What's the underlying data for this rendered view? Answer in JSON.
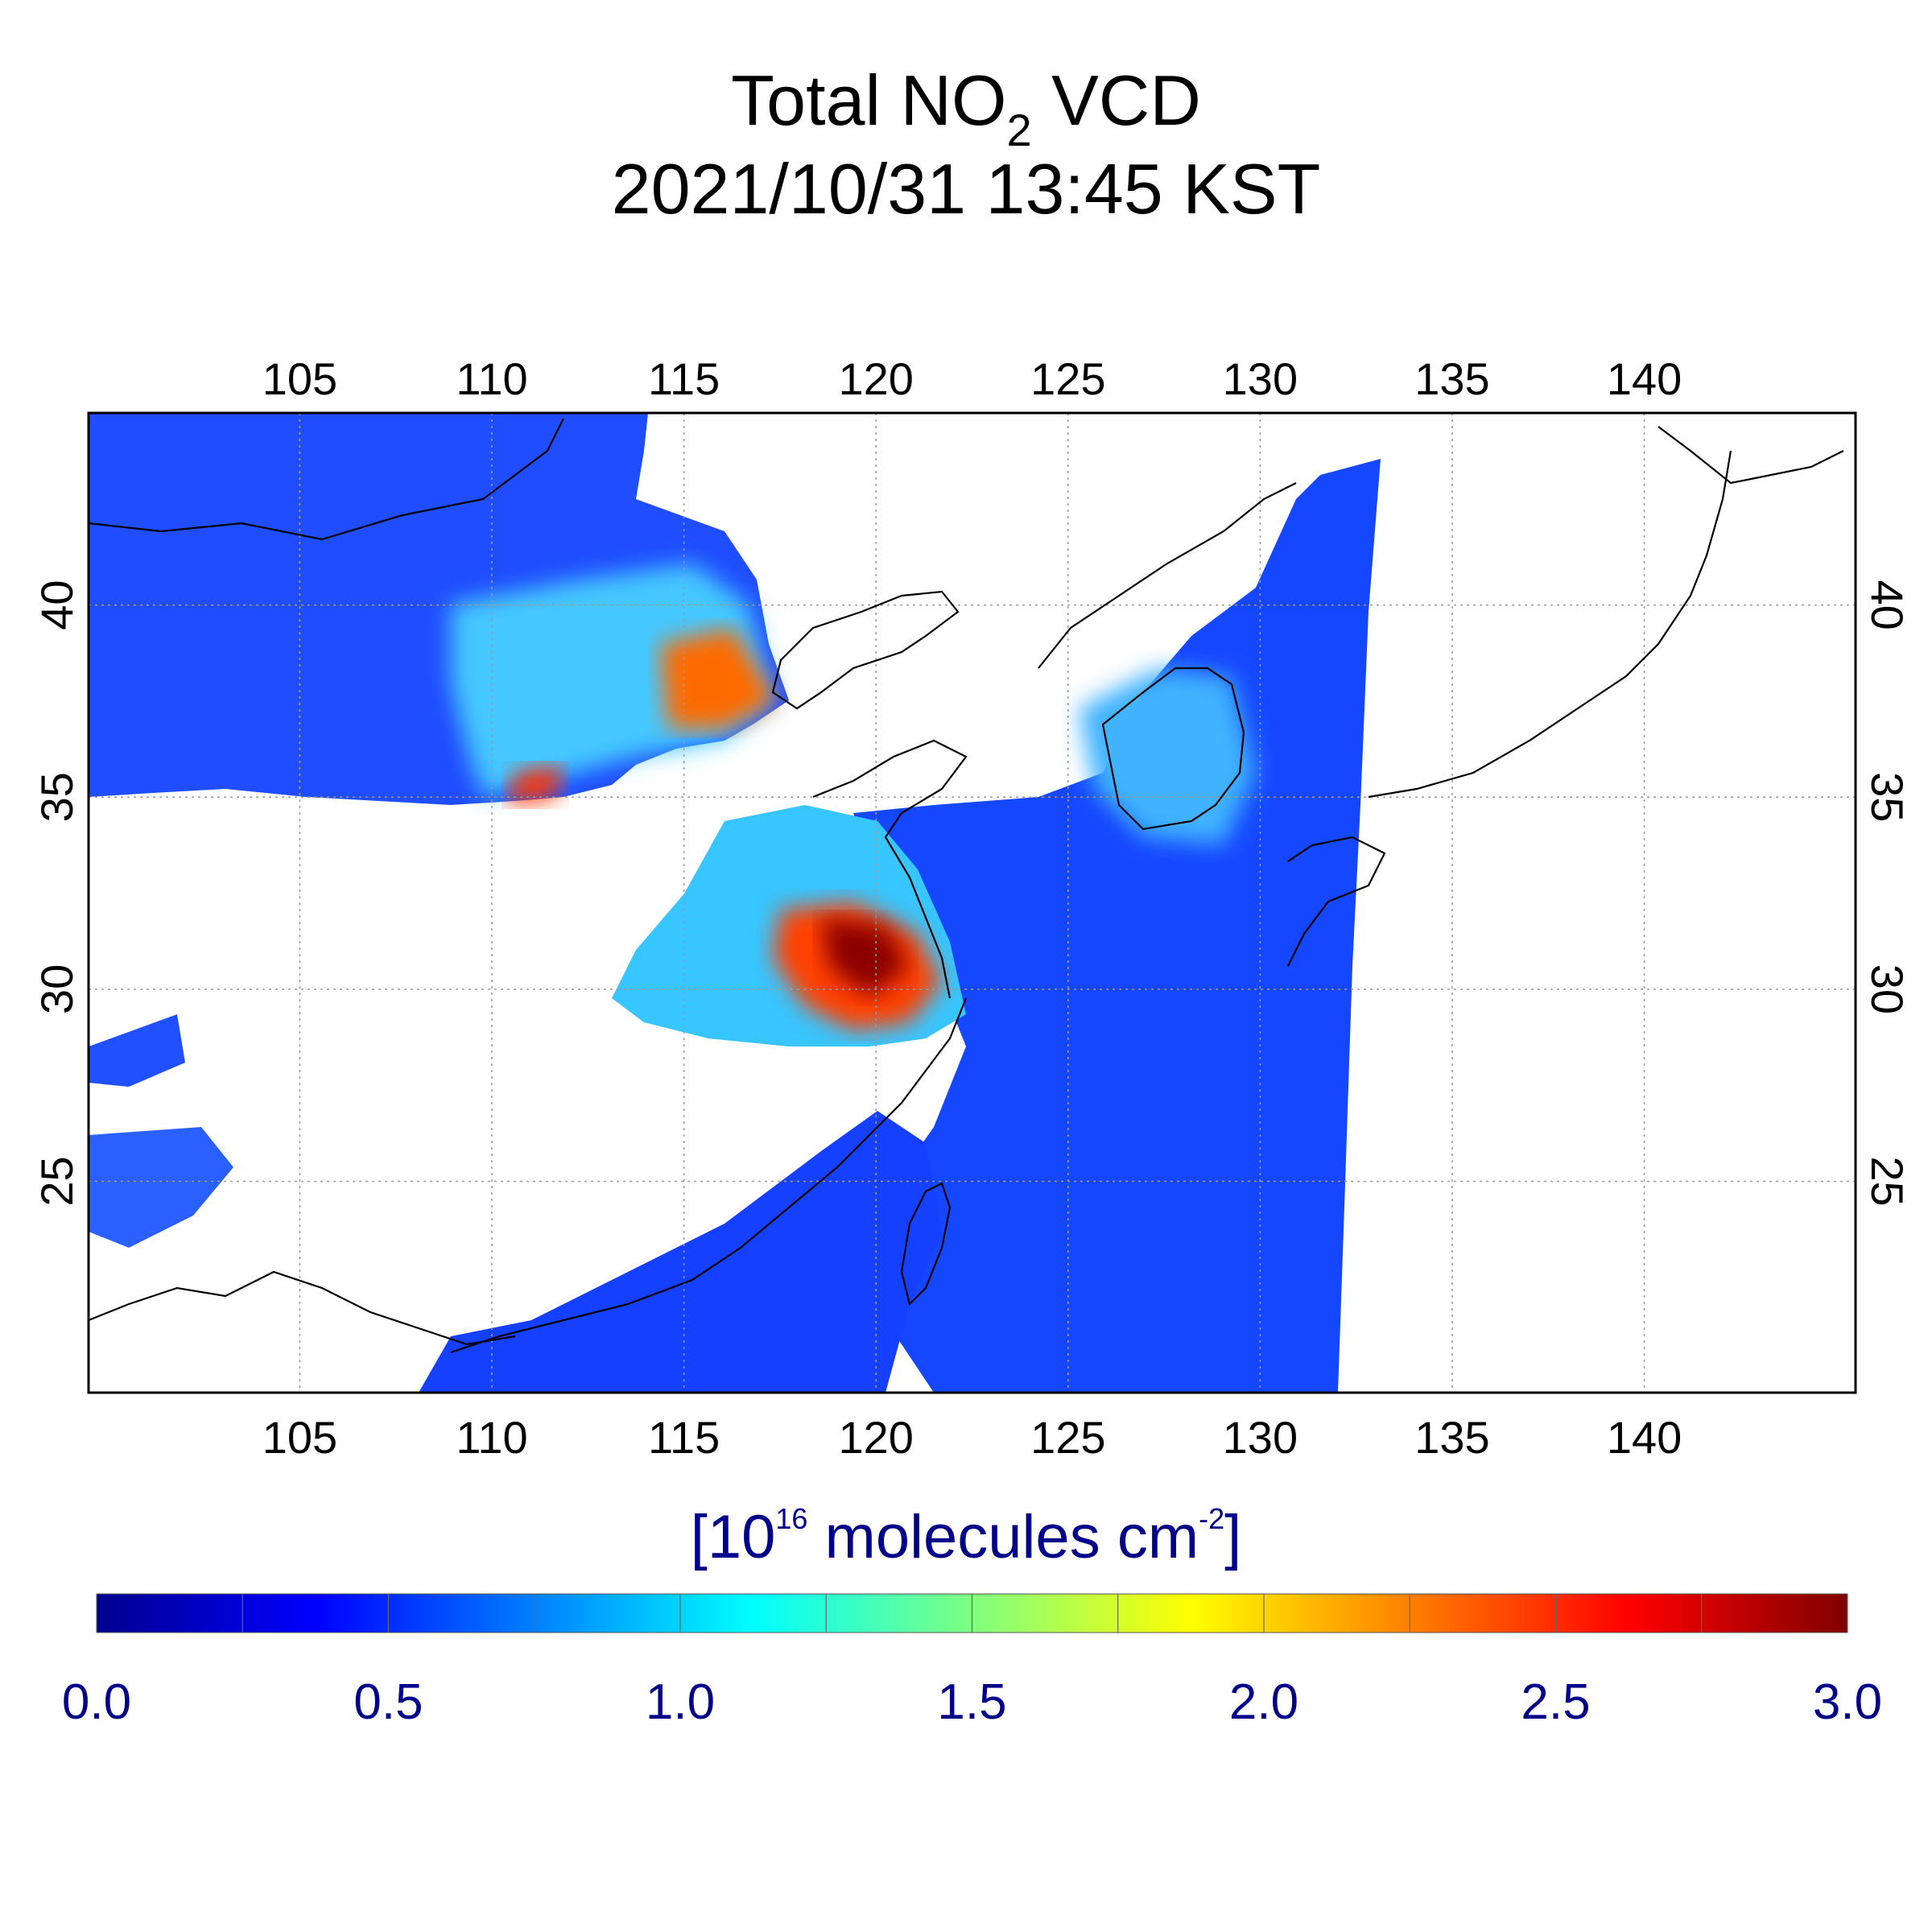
{
  "title": {
    "main_prefix": "Total NO",
    "main_subscript": "2",
    "main_suffix": " VCD",
    "datetime": "2021/10/31 13:45 KST"
  },
  "map": {
    "lon_range": [
      99.5,
      145.5
    ],
    "lat_range": [
      19.5,
      45.0
    ],
    "lon_ticks": [
      "105",
      "110",
      "115",
      "120",
      "125",
      "130",
      "135",
      "140"
    ],
    "lat_ticks": [
      "40",
      "35",
      "30",
      "25"
    ],
    "grid": true,
    "frame_color": "#000000"
  },
  "colorbar": {
    "unit_prefix": "[10",
    "unit_exponent": "16",
    "unit_middle": " molecules cm",
    "unit_exponent2": "-2",
    "unit_suffix": "]",
    "range": [
      0.0,
      3.0
    ],
    "tick_labels": [
      "0.0",
      "0.5",
      "1.0",
      "1.5",
      "2.0",
      "2.5",
      "3.0"
    ],
    "colormap": "jet",
    "colors": [
      "#00008f",
      "#0000ff",
      "#0080ff",
      "#00ffff",
      "#80ff80",
      "#ffff00",
      "#ff8000",
      "#ff0000",
      "#800000"
    ]
  }
}
